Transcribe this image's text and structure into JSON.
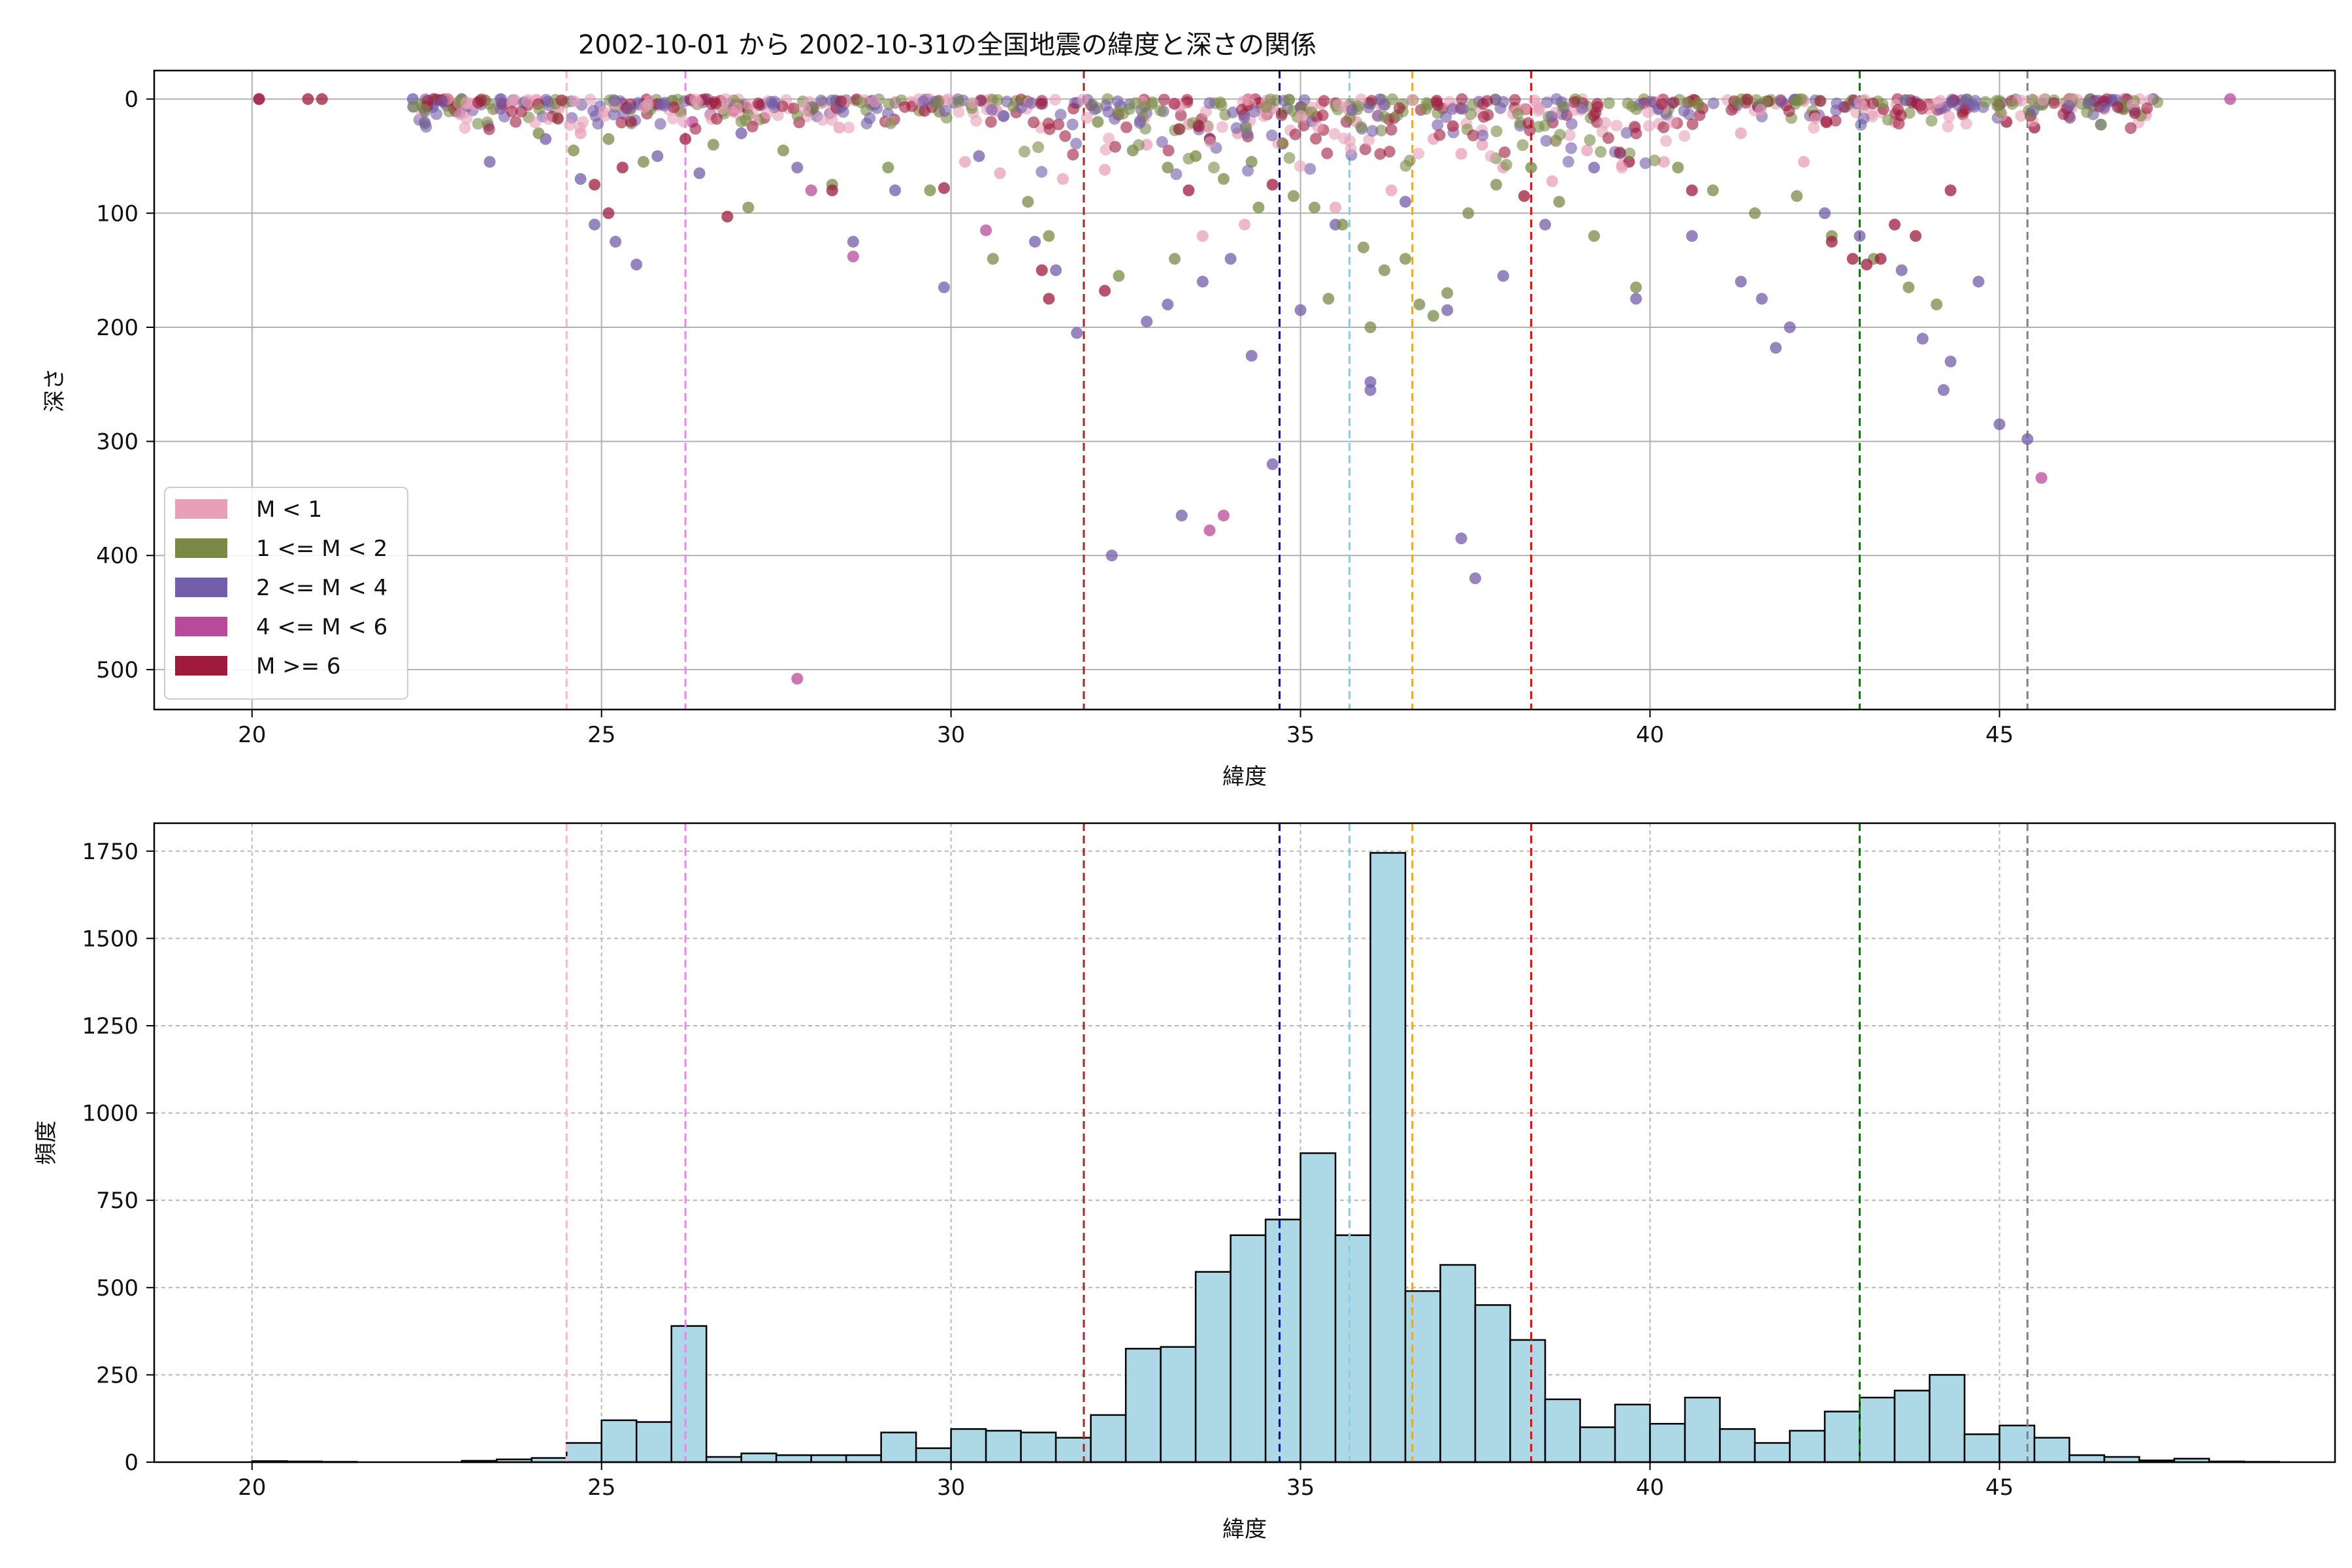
{
  "title": "2002-10-01 から 2002-10-31の全国地震の緯度と深さの関係",
  "chart_data": [
    {
      "type": "scatter",
      "xlabel": "緯度",
      "ylabel": "深さ",
      "xlim": [
        18.6,
        49.8
      ],
      "ylim": [
        535,
        -25
      ],
      "y_inverted": true,
      "grid": true,
      "x_ticks": [
        20,
        25,
        30,
        35,
        40,
        45
      ],
      "y_ticks": [
        0,
        100,
        200,
        300,
        400,
        500
      ],
      "legend_position": "lower-left",
      "legend": [
        {
          "label": "M < 1",
          "color": "#e8a0b8"
        },
        {
          "label": "1 <= M < 2",
          "color": "#7a8a45"
        },
        {
          "label": "2 <= M < 4",
          "color": "#735ca8"
        },
        {
          "label": "4 <= M < 6",
          "color": "#b84a9a"
        },
        {
          "label": "M >= 6",
          "color": "#9e1b3c"
        }
      ],
      "vlines": [
        {
          "x": 24.5,
          "color": "#ffb6c1"
        },
        {
          "x": 26.2,
          "color": "#ee82ee"
        },
        {
          "x": 31.9,
          "color": "#b22222"
        },
        {
          "x": 34.7,
          "color": "#0000cd"
        },
        {
          "x": 35.7,
          "color": "#87ceeb"
        },
        {
          "x": 36.6,
          "color": "#ffa500"
        },
        {
          "x": 38.3,
          "color": "#ff0000"
        },
        {
          "x": 43.0,
          "color": "#008000"
        },
        {
          "x": 45.4,
          "color": "#808080"
        }
      ],
      "series": [
        {
          "name": "M < 1",
          "color": "#e8a0b8",
          "points": [
            [
              34.6,
              8
            ],
            [
              35.1,
              12
            ],
            [
              35.3,
              4
            ],
            [
              35.8,
              20
            ],
            [
              36.1,
              15
            ],
            [
              36.9,
              35
            ],
            [
              37.3,
              48
            ],
            [
              37.9,
              60
            ],
            [
              38.6,
              72
            ],
            [
              39.1,
              45
            ],
            [
              39.6,
              58
            ],
            [
              40.2,
              55
            ],
            [
              34.1,
              30
            ],
            [
              33.4,
              22
            ],
            [
              32.8,
              40
            ],
            [
              32.2,
              62
            ],
            [
              31.6,
              70
            ],
            [
              30.7,
              65
            ],
            [
              30.2,
              55
            ],
            [
              36.3,
              80
            ],
            [
              35.5,
              95
            ],
            [
              34.2,
              110
            ],
            [
              33.6,
              120
            ],
            [
              37.6,
              40
            ],
            [
              41.3,
              30
            ],
            [
              42.2,
              55
            ],
            [
              43.5,
              20
            ],
            [
              44.2,
              8
            ],
            [
              24.7,
              30
            ],
            [
              26.1,
              10
            ],
            [
              29.6,
              10
            ],
            [
              28.4,
              25
            ]
          ]
        },
        {
          "name": "1 <= M < 2",
          "color": "#7a8a45",
          "points": [
            [
              32.1,
              20
            ],
            [
              32.6,
              45
            ],
            [
              33.1,
              60
            ],
            [
              33.5,
              50
            ],
            [
              33.9,
              70
            ],
            [
              34.3,
              55
            ],
            [
              34.9,
              85
            ],
            [
              35.2,
              95
            ],
            [
              35.6,
              110
            ],
            [
              35.9,
              130
            ],
            [
              36.2,
              150
            ],
            [
              36.5,
              140
            ],
            [
              36.9,
              190
            ],
            [
              37.4,
              100
            ],
            [
              37.8,
              75
            ],
            [
              38.3,
              60
            ],
            [
              38.7,
              90
            ],
            [
              39.2,
              120
            ],
            [
              39.8,
              165
            ],
            [
              40.4,
              60
            ],
            [
              40.9,
              80
            ],
            [
              41.5,
              100
            ],
            [
              42.1,
              85
            ],
            [
              42.6,
              120
            ],
            [
              43.2,
              140
            ],
            [
              43.7,
              165
            ],
            [
              44.1,
              180
            ],
            [
              31.1,
              90
            ],
            [
              31.4,
              120
            ],
            [
              30.6,
              140
            ],
            [
              29.7,
              80
            ],
            [
              29.1,
              60
            ],
            [
              28.3,
              75
            ],
            [
              27.6,
              45
            ],
            [
              27.1,
              95
            ],
            [
              26.6,
              40
            ],
            [
              25.6,
              55
            ],
            [
              25.1,
              35
            ],
            [
              24.6,
              45
            ],
            [
              24.1,
              30
            ],
            [
              36.7,
              180
            ],
            [
              37.1,
              170
            ],
            [
              34.4,
              95
            ],
            [
              33.2,
              140
            ],
            [
              32.4,
              155
            ],
            [
              35.4,
              175
            ],
            [
              36.0,
              200
            ]
          ]
        },
        {
          "name": "2 <= M < 4",
          "color": "#735ca8",
          "points": [
            [
              22.3,
              0
            ],
            [
              23.0,
              0
            ],
            [
              23.4,
              55
            ],
            [
              24.2,
              35
            ],
            [
              24.7,
              70
            ],
            [
              24.9,
              110
            ],
            [
              25.2,
              125
            ],
            [
              25.5,
              145
            ],
            [
              25.8,
              50
            ],
            [
              26.4,
              65
            ],
            [
              27.0,
              30
            ],
            [
              27.8,
              60
            ],
            [
              28.6,
              125
            ],
            [
              29.2,
              80
            ],
            [
              29.9,
              165
            ],
            [
              30.4,
              50
            ],
            [
              31.2,
              125
            ],
            [
              31.5,
              150
            ],
            [
              31.8,
              205
            ],
            [
              32.3,
              400
            ],
            [
              32.8,
              195
            ],
            [
              33.1,
              180
            ],
            [
              33.3,
              365
            ],
            [
              33.6,
              160
            ],
            [
              34.0,
              140
            ],
            [
              34.3,
              225
            ],
            [
              34.6,
              320
            ],
            [
              35.0,
              185
            ],
            [
              35.5,
              110
            ],
            [
              36.0,
              255
            ],
            [
              36.0,
              248
            ],
            [
              36.5,
              90
            ],
            [
              37.1,
              185
            ],
            [
              37.3,
              385
            ],
            [
              37.5,
              420
            ],
            [
              37.9,
              155
            ],
            [
              38.5,
              110
            ],
            [
              39.2,
              60
            ],
            [
              39.8,
              175
            ],
            [
              40.6,
              120
            ],
            [
              41.3,
              160
            ],
            [
              41.6,
              175
            ],
            [
              42.0,
              200
            ],
            [
              42.5,
              100
            ],
            [
              43.0,
              120
            ],
            [
              43.6,
              150
            ],
            [
              43.9,
              210
            ],
            [
              44.3,
              230
            ],
            [
              44.2,
              255
            ],
            [
              44.7,
              160
            ],
            [
              45.0,
              285
            ],
            [
              45.4,
              298
            ],
            [
              46.3,
              0
            ],
            [
              47.2,
              0
            ],
            [
              41.8,
              218
            ]
          ]
        },
        {
          "name": "4 <= M < 6",
          "color": "#b84a9a",
          "points": [
            [
              27.8,
              508
            ],
            [
              28.6,
              138
            ],
            [
              28.0,
              80
            ],
            [
              30.5,
              115
            ],
            [
              33.7,
              378
            ],
            [
              33.9,
              365
            ],
            [
              45.6,
              332
            ],
            [
              26.3,
              20
            ],
            [
              46.8,
              0
            ],
            [
              48.3,
              0
            ],
            [
              22.8,
              0
            ],
            [
              20.1,
              0
            ]
          ]
        },
        {
          "name": "M >= 6",
          "color": "#9e1b3c",
          "points": [
            [
              20.1,
              0
            ],
            [
              20.8,
              0
            ],
            [
              21.0,
              0
            ],
            [
              22.6,
              0
            ],
            [
              24.3,
              15
            ],
            [
              24.9,
              75
            ],
            [
              25.1,
              100
            ],
            [
              25.3,
              60
            ],
            [
              26.2,
              35
            ],
            [
              26.8,
              103
            ],
            [
              28.3,
              80
            ],
            [
              29.9,
              78
            ],
            [
              31.3,
              150
            ],
            [
              31.4,
              175
            ],
            [
              32.2,
              168
            ],
            [
              33.4,
              80
            ],
            [
              34.6,
              75
            ],
            [
              38.2,
              85
            ],
            [
              42.6,
              125
            ],
            [
              42.9,
              140
            ],
            [
              43.1,
              145
            ],
            [
              43.3,
              140
            ],
            [
              43.5,
              110
            ],
            [
              43.8,
              120
            ],
            [
              44.3,
              80
            ],
            [
              45.1,
              20
            ],
            [
              45.5,
              25
            ],
            [
              46.0,
              0
            ],
            [
              39.7,
              55
            ],
            [
              40.6,
              80
            ]
          ]
        }
      ]
    },
    {
      "type": "bar",
      "xlabel": "緯度",
      "ylabel": "頻度",
      "xlim": [
        18.6,
        49.8
      ],
      "ylim": [
        0,
        1830
      ],
      "grid": true,
      "x_ticks": [
        20,
        25,
        30,
        35,
        40,
        45
      ],
      "y_ticks": [
        0,
        250,
        500,
        750,
        1000,
        1250,
        1500,
        1750
      ],
      "bar_color": "#add8e6",
      "bin_start": 20.0,
      "bin_width": 0.5,
      "values": [
        3,
        2,
        1,
        0,
        0,
        0,
        4,
        8,
        12,
        55,
        120,
        115,
        390,
        15,
        25,
        20,
        20,
        20,
        85,
        40,
        95,
        90,
        85,
        70,
        135,
        325,
        330,
        545,
        650,
        695,
        885,
        650,
        1745,
        490,
        565,
        450,
        350,
        180,
        100,
        165,
        110,
        185,
        95,
        55,
        90,
        145,
        185,
        205,
        250,
        80,
        105,
        70,
        20,
        15,
        5,
        10,
        2,
        1,
        0,
        0,
        0
      ]
    }
  ]
}
